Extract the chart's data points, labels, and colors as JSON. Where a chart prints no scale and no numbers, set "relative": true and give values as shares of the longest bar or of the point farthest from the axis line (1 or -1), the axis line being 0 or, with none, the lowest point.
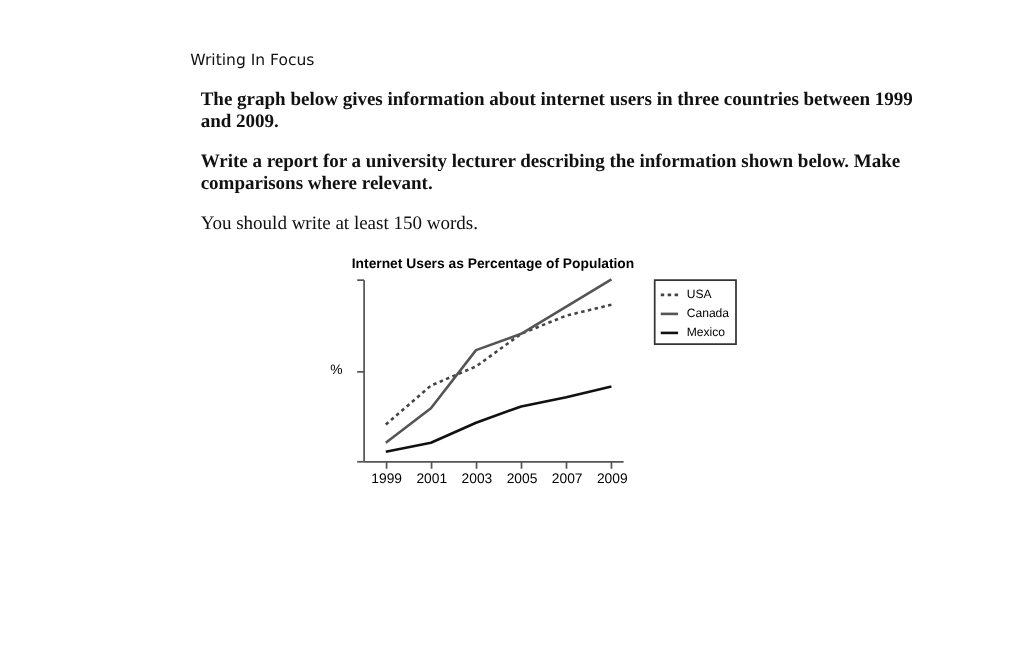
{
  "chart_data": {
    "type": "line",
    "title": "Internet Users as Percentage of Population",
    "ylabel": "%",
    "relative": true,
    "annotations": [
      "Writing In Focus",
      "The graph below gives information about internet users in three countries between 1999 and 2009.",
      "Write a report for a university lecturer describing the information shown below. Make comparisons where relevant.",
      "You should write at least 150 words."
    ],
    "x": [
      1999,
      2001,
      2003,
      2005,
      2007,
      2009
    ],
    "xlim": [
      1998,
      2009.5
    ],
    "xticks": [
      1999,
      2001,
      2003,
      2005,
      2007,
      2009
    ],
    "series": [
      {
        "name": "USA",
        "color": "#444444",
        "line_style": "dotted",
        "values": [
          0.2,
          0.415,
          0.52,
          0.7,
          0.8,
          0.86
        ]
      },
      {
        "name": "Canada",
        "color": "#555555",
        "line_style": "solid",
        "values": [
          0.1,
          0.29,
          0.61,
          0.7,
          0.85,
          1
        ]
      },
      {
        "name": "Mexico",
        "color": "#111111",
        "line_style": "solid",
        "values": [
          0.05,
          0.1,
          0.21,
          0.3,
          0.35,
          0.41
        ]
      }
    ],
    "legend": "right",
    "grid": false,
    "marker": "none"
  }
}
